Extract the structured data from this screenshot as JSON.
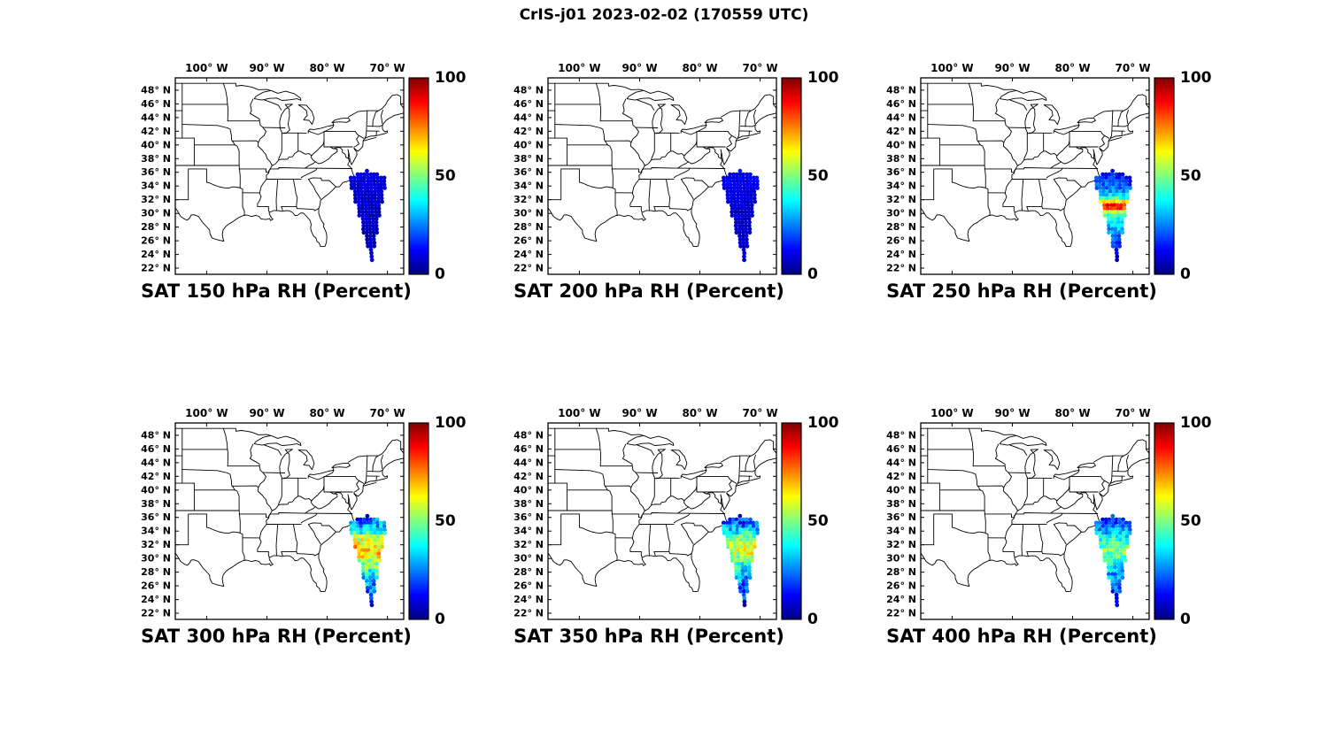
{
  "title": "CrIS-j01 2023-02-02 (170559 UTC)",
  "axes": {
    "lon_ticks": [
      "100° W",
      "90° W",
      "80° W",
      "70° W"
    ],
    "lon_tick_values": [
      -100,
      -90,
      -80,
      -70
    ],
    "lat_ticks": [
      "48° N",
      "46° N",
      "44° N",
      "42° N",
      "40° N",
      "38° N",
      "36° N",
      "34° N",
      "32° N",
      "30° N",
      "28° N",
      "26° N",
      "24° N",
      "22° N"
    ],
    "lat_tick_values": [
      48,
      46,
      44,
      42,
      40,
      38,
      36,
      34,
      32,
      30,
      28,
      26,
      24,
      22
    ]
  },
  "colorbar": {
    "ticks": [
      "100",
      "50",
      "0"
    ],
    "tick_values": [
      100,
      50,
      0
    ],
    "min": 0,
    "max": 100
  },
  "panels": [
    {
      "title": "SAT 150 hPa RH (Percent)",
      "level_hPa": 150
    },
    {
      "title": "SAT 200 hPa RH (Percent)",
      "level_hPa": 200
    },
    {
      "title": "SAT 250 hPa RH (Percent)",
      "level_hPa": 250
    },
    {
      "title": "SAT 300 hPa RH (Percent)",
      "level_hPa": 300
    },
    {
      "title": "SAT 350 hPa RH (Percent)",
      "level_hPa": 350
    },
    {
      "title": "SAT 400 hPa RH (Percent)",
      "level_hPa": 400
    }
  ],
  "chart_data": {
    "type": "scatter",
    "subtype": "map_swath_small_multiples",
    "title": "CrIS-j01 2023-02-02 (170559 UTC)",
    "variable": "Relative Humidity (Percent)",
    "levels_hPa": [
      150,
      200,
      250,
      300,
      350,
      400
    ],
    "map_extent": {
      "lon_range": [
        -105.2,
        -67.3
      ],
      "lat_range": [
        21.1,
        49.8
      ]
    },
    "colormap": "jet",
    "colorbar_range": [
      0,
      100
    ],
    "legend_position": "right",
    "swath": {
      "description": "CrIS satellite swath of RH retrievals over the Atlantic off the US southeast coast, wide at ~36N narrowing to a point near 23N",
      "top_lat": 36.2,
      "apex_lat": 23.0,
      "apex_lon": -72.6,
      "top_center_lon": -73.35,
      "max_half_width_deg": 3.25,
      "lat_step_deg": 0.5,
      "lon_step_deg": 0.55
    },
    "panels": [
      {
        "level_hPa": 150,
        "noise_amp": 3,
        "rh_profile_lat_rh": [
          [
            36.2,
            10
          ],
          [
            33,
            8
          ],
          [
            30,
            6
          ],
          [
            27,
            6
          ],
          [
            24,
            7
          ],
          [
            23,
            8
          ]
        ]
      },
      {
        "level_hPa": 200,
        "noise_amp": 3,
        "rh_profile_lat_rh": [
          [
            36.2,
            12
          ],
          [
            33,
            9
          ],
          [
            30,
            7
          ],
          [
            27,
            7
          ],
          [
            24,
            8
          ],
          [
            23,
            8
          ]
        ]
      },
      {
        "level_hPa": 250,
        "noise_amp": 8,
        "rh_profile_lat_rh": [
          [
            36.2,
            12
          ],
          [
            34.5,
            18
          ],
          [
            33,
            30
          ],
          [
            32,
            45
          ],
          [
            31.3,
            88
          ],
          [
            30.6,
            80
          ],
          [
            30,
            45
          ],
          [
            28.5,
            35
          ],
          [
            27,
            25
          ],
          [
            25,
            15
          ],
          [
            23,
            8
          ]
        ]
      },
      {
        "level_hPa": 300,
        "noise_amp": 13,
        "rh_profile_lat_rh": [
          [
            36.2,
            18
          ],
          [
            35,
            25
          ],
          [
            34,
            40
          ],
          [
            33,
            55
          ],
          [
            32,
            65
          ],
          [
            31,
            68
          ],
          [
            30,
            60
          ],
          [
            29,
            50
          ],
          [
            28,
            40
          ],
          [
            26.5,
            30
          ],
          [
            25,
            22
          ],
          [
            23,
            15
          ]
        ]
      },
      {
        "level_hPa": 350,
        "noise_amp": 12,
        "rh_profile_lat_rh": [
          [
            36.2,
            15
          ],
          [
            35,
            22
          ],
          [
            34,
            35
          ],
          [
            33,
            48
          ],
          [
            32,
            58
          ],
          [
            31,
            60
          ],
          [
            30,
            52
          ],
          [
            29,
            42
          ],
          [
            28,
            34
          ],
          [
            26.5,
            26
          ],
          [
            25,
            18
          ],
          [
            23,
            12
          ]
        ]
      },
      {
        "level_hPa": 400,
        "noise_amp": 10,
        "rh_profile_lat_rh": [
          [
            36.2,
            15
          ],
          [
            35,
            22
          ],
          [
            34,
            30
          ],
          [
            33,
            38
          ],
          [
            32,
            45
          ],
          [
            31,
            52
          ],
          [
            30,
            45
          ],
          [
            29,
            38
          ],
          [
            28,
            30
          ],
          [
            26.5,
            25
          ],
          [
            25,
            20
          ],
          [
            23,
            15
          ]
        ]
      }
    ]
  }
}
